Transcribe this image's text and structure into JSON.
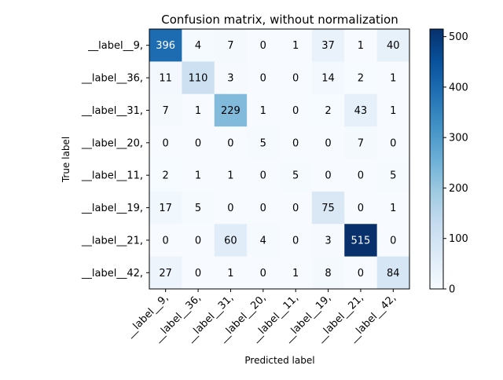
{
  "chart_data": {
    "type": "heatmap",
    "title": "Confusion matrix, without normalization",
    "xlabel": "Predicted label",
    "ylabel": "True label",
    "x_categories": [
      "__label__9,",
      "__label__36,",
      "__label__31,",
      "__label__20,",
      "__label__11,",
      "__label__19,",
      "__label__21,",
      "__label__42,"
    ],
    "y_categories": [
      "__label__9,",
      "__label__36,",
      "__label__31,",
      "__label__20,",
      "__label__11,",
      "__label__19,",
      "__label__21,",
      "__label__42,"
    ],
    "matrix": [
      [
        396,
        4,
        7,
        0,
        1,
        37,
        1,
        40
      ],
      [
        11,
        110,
        3,
        0,
        0,
        14,
        2,
        1
      ],
      [
        7,
        1,
        229,
        1,
        0,
        2,
        43,
        1
      ],
      [
        0,
        0,
        0,
        5,
        0,
        0,
        7,
        0
      ],
      [
        2,
        1,
        1,
        0,
        5,
        0,
        0,
        5
      ],
      [
        17,
        5,
        0,
        0,
        0,
        75,
        0,
        1
      ],
      [
        0,
        0,
        60,
        4,
        0,
        3,
        515,
        0
      ],
      [
        27,
        0,
        1,
        0,
        1,
        8,
        0,
        84
      ]
    ],
    "colormap": "Blues",
    "value_range": [
      0,
      515
    ],
    "colorbar_ticks": [
      0,
      100,
      200,
      300,
      400,
      500
    ],
    "text_colors": {
      "dark_cell": "#ffffff",
      "light_cell": "#000000"
    }
  }
}
